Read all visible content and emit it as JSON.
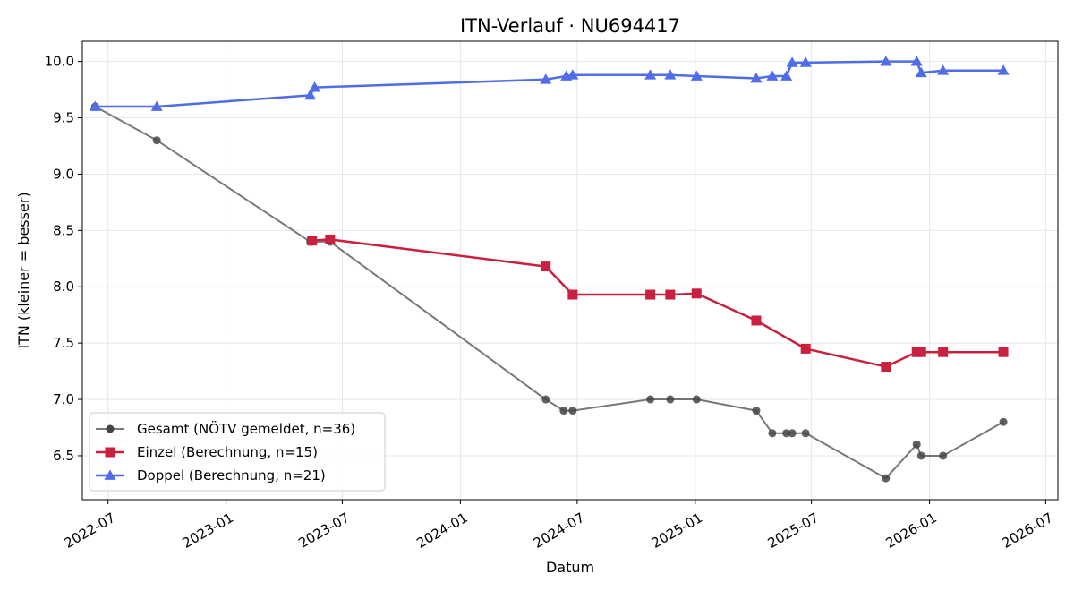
{
  "chart_data": {
    "type": "line",
    "title": "ITN-Verlauf · NU694417",
    "xlabel": "Datum",
    "ylabel": "ITN  (kleiner = besser)",
    "x_axis_type": "date",
    "xlim": [
      "2022-05-22",
      "2026-07-20"
    ],
    "ylim": [
      6.11,
      10.18
    ],
    "x_ticks": [
      "2022-07",
      "2023-01",
      "2023-07",
      "2024-01",
      "2024-07",
      "2025-01",
      "2025-07",
      "2026-01",
      "2026-07"
    ],
    "y_ticks": [
      "6.5",
      "7.0",
      "7.5",
      "8.0",
      "8.5",
      "9.0",
      "9.5",
      "10.0"
    ],
    "grid": true,
    "legend_position": "lower-left",
    "series": [
      {
        "name": "Gesamt (NÖTV gemeldet, n=36)",
        "color": "#444444",
        "marker": "circle",
        "points": [
          [
            "2022-06-11",
            9.6
          ],
          [
            "2022-09-15",
            9.3
          ],
          [
            "2023-05-12",
            8.4
          ],
          [
            "2023-05-15",
            8.4
          ],
          [
            "2023-06-12",
            8.4
          ],
          [
            "2024-05-13",
            7.0
          ],
          [
            "2024-06-10",
            6.9
          ],
          [
            "2024-06-24",
            6.9
          ],
          [
            "2024-10-23",
            7.0
          ],
          [
            "2024-11-23",
            7.0
          ],
          [
            "2025-01-03",
            7.0
          ],
          [
            "2025-04-06",
            6.9
          ],
          [
            "2025-05-01",
            6.7
          ],
          [
            "2025-05-23",
            6.7
          ],
          [
            "2025-06-01",
            6.7
          ],
          [
            "2025-06-22",
            6.7
          ],
          [
            "2025-10-25",
            6.3
          ],
          [
            "2025-12-12",
            6.6
          ],
          [
            "2025-12-19",
            6.5
          ],
          [
            "2026-01-22",
            6.5
          ],
          [
            "2026-04-26",
            6.8
          ]
        ]
      },
      {
        "name": "Einzel (Berechnung, n=15)",
        "color": "#c8203e",
        "marker": "square",
        "points": [
          [
            "2023-05-15",
            8.41
          ],
          [
            "2023-06-12",
            8.42
          ],
          [
            "2024-05-13",
            8.18
          ],
          [
            "2024-06-24",
            7.93
          ],
          [
            "2024-10-23",
            7.93
          ],
          [
            "2024-11-23",
            7.93
          ],
          [
            "2025-01-03",
            7.94
          ],
          [
            "2025-04-06",
            7.7
          ],
          [
            "2025-06-22",
            7.45
          ],
          [
            "2025-10-25",
            7.29
          ],
          [
            "2025-12-12",
            7.42
          ],
          [
            "2025-12-19",
            7.42
          ],
          [
            "2026-01-22",
            7.42
          ],
          [
            "2026-04-26",
            7.42
          ]
        ]
      },
      {
        "name": "Doppel (Berechnung, n=21)",
        "color": "#4f6de8",
        "marker": "triangle",
        "points": [
          [
            "2022-06-11",
            9.6
          ],
          [
            "2022-09-15",
            9.6
          ],
          [
            "2023-05-12",
            9.7
          ],
          [
            "2023-05-19",
            9.77
          ],
          [
            "2024-05-13",
            9.84
          ],
          [
            "2024-06-14",
            9.87
          ],
          [
            "2024-06-24",
            9.88
          ],
          [
            "2024-10-23",
            9.88
          ],
          [
            "2024-11-23",
            9.88
          ],
          [
            "2025-01-03",
            9.87
          ],
          [
            "2025-04-06",
            9.85
          ],
          [
            "2025-05-01",
            9.87
          ],
          [
            "2025-05-23",
            9.87
          ],
          [
            "2025-06-01",
            9.99
          ],
          [
            "2025-06-22",
            9.99
          ],
          [
            "2025-10-25",
            10.0
          ],
          [
            "2025-12-12",
            10.0
          ],
          [
            "2025-12-19",
            9.9
          ],
          [
            "2026-01-22",
            9.92
          ],
          [
            "2026-04-26",
            9.92
          ]
        ]
      }
    ]
  }
}
